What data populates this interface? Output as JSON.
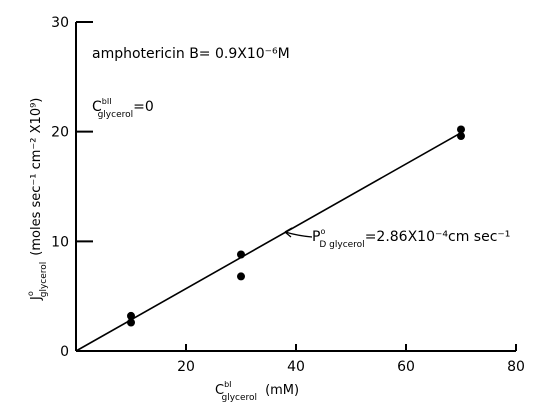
{
  "chart_data": {
    "type": "scatter",
    "x_ticks": [
      "20",
      "40",
      "60",
      "80"
    ],
    "y_ticks": [
      "0",
      "10",
      "20",
      "30"
    ],
    "xlim": [
      0,
      80
    ],
    "ylim": [
      0,
      30
    ],
    "xlabel": {
      "base": "C",
      "sup": "bI",
      "sub": "glycerol",
      "rest": "(mM)"
    },
    "ylabel": {
      "base": "J",
      "sup": "o",
      "sub": "glycerol",
      "rest": "(moles sec⁻¹ cm⁻² X10⁹)"
    },
    "points": [
      {
        "x": 10,
        "y": 3.2
      },
      {
        "x": 10,
        "y": 2.6
      },
      {
        "x": 30,
        "y": 8.8
      },
      {
        "x": 30,
        "y": 6.8
      },
      {
        "x": 70,
        "y": 20.2
      },
      {
        "x": 70,
        "y": 19.6
      }
    ],
    "fit_line": {
      "x": [
        0,
        70
      ],
      "y": [
        0,
        19.9
      ]
    },
    "annotations": {
      "drug": "amphotericin B= 0.9X10⁻⁶M",
      "cond": {
        "base": "C",
        "sup": "bII",
        "sub": "glycerol",
        "rest": "=0"
      },
      "perm": {
        "base": "P",
        "sup": "o",
        "sub": "D glycerol",
        "rest": "=2.86X10⁻⁴cm sec⁻¹"
      }
    },
    "grid": false
  }
}
